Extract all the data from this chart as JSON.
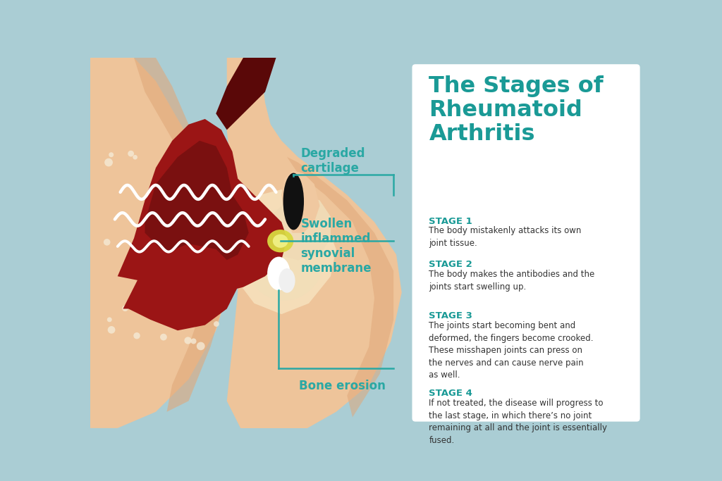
{
  "bg_color": "#aacdd4",
  "title_color": "#1a9a96",
  "stage_color": "#1a9a96",
  "body_color": "#333333",
  "line_color": "#2aa8a4",
  "title": "The Stages of\nRheumatoid\nArthritis",
  "stages": [
    {
      "label": "STAGE 1",
      "text": "The body mistakenly attacks its own\njoint tissue."
    },
    {
      "label": "STAGE 2",
      "text": "The body makes the antibodies and the\njoints start swelling up."
    },
    {
      "label": "STAGE 3",
      "text": "The joints start becoming bent and\ndeformed, the fingers become crooked.\nThese misshapen joints can press on\nthe nerves and can cause nerve pain\nas well."
    },
    {
      "label": "STAGE 4",
      "text": "If not treated, the disease will progress to\nthe last stage, in which there’s no joint\nremaining at all and the joint is essentially\nfused."
    }
  ],
  "skin_light": "#eec49a",
  "skin_mid": "#e0a87a",
  "skin_dark": "#cc8855",
  "bone_light": "#f5ddb8",
  "dark_red": "#7a1010",
  "dark_red2": "#9b1515",
  "crimson": "#c01818",
  "yellow": "#d8d840",
  "white": "#ffffff",
  "black": "#111111",
  "dot_color": "#f5ead5"
}
